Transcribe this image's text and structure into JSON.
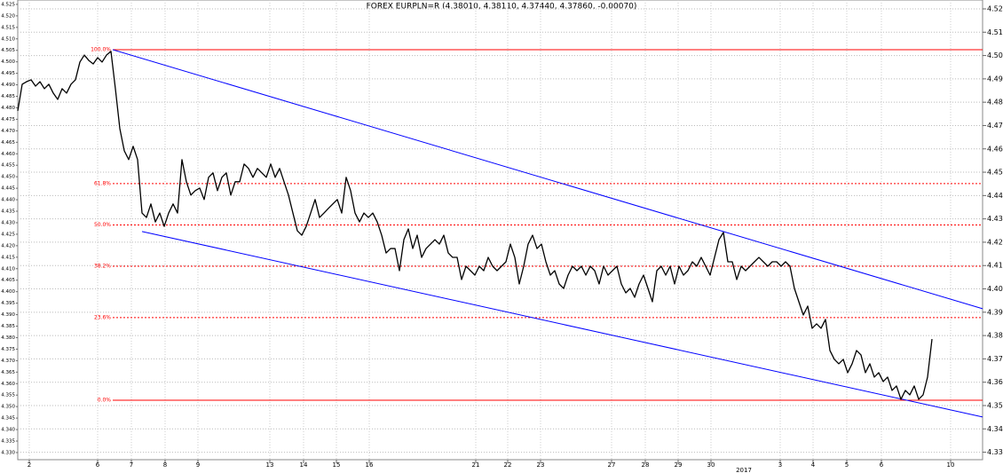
{
  "chart_data": {
    "type": "line",
    "title": "FOREX EURPLN=R (4.38010, 4.38110, 4.37440, 4.37860, -0.00070)",
    "series": [
      {
        "color": "#000000",
        "values": [
          4.4763,
          4.4877,
          4.4888,
          4.4896,
          4.4869,
          4.4888,
          4.4858,
          4.4877,
          4.4839,
          4.4812,
          4.4858,
          4.4839,
          4.4877,
          4.4896,
          4.4972,
          4.5002,
          4.4979,
          4.4964,
          4.4991,
          4.4972,
          4.5002,
          4.5018,
          4.4858,
          4.4687,
          4.4592,
          4.4554,
          4.4611,
          4.4554,
          4.4325,
          4.4306,
          4.4364,
          4.4287,
          4.4325,
          4.4268,
          4.4325,
          4.4364,
          4.4325,
          4.4554,
          4.4459,
          4.4402,
          4.4421,
          4.4432,
          4.4383,
          4.4478,
          4.4497,
          4.4421,
          4.4478,
          4.4497,
          4.4402,
          4.4459,
          4.4459,
          4.4535,
          4.4516,
          4.4478,
          4.4516,
          4.4497,
          4.4478,
          4.4535,
          4.4478,
          4.4516,
          4.4459,
          4.4402,
          4.4325,
          4.4249,
          4.423,
          4.4268,
          4.4325,
          4.4383,
          4.4306,
          4.4325,
          4.4345,
          4.4364,
          4.4383,
          4.4325,
          4.4478,
          4.4421,
          4.4325,
          4.4287,
          4.4325,
          4.4306,
          4.4325,
          4.4287,
          4.423,
          4.4154,
          4.4173,
          4.4173,
          4.4078,
          4.4211,
          4.4257,
          4.4173,
          4.423,
          4.4135,
          4.4173,
          4.4192,
          4.4211,
          4.4192,
          4.423,
          4.4154,
          4.4135,
          4.4135,
          4.404,
          4.4097,
          4.4078,
          4.4059,
          4.4097,
          4.4078,
          4.4135,
          4.4097,
          4.4078,
          4.4097,
          4.4116,
          4.4192,
          4.4135,
          4.4021,
          4.4097,
          4.4192,
          4.423,
          4.4173,
          4.4192,
          4.4116,
          4.4059,
          4.4078,
          4.4021,
          4.4002,
          4.4059,
          4.4097,
          4.4078,
          4.4097,
          4.4059,
          4.4097,
          4.4078,
          4.4021,
          4.4097,
          4.4059,
          4.4078,
          4.4097,
          4.4021,
          4.3983,
          4.4002,
          4.3964,
          4.4021,
          4.4059,
          4.4002,
          4.3945,
          4.4078,
          4.4097,
          4.4059,
          4.4097,
          4.4021,
          4.4097,
          4.4059,
          4.4078,
          4.4116,
          4.4097,
          4.4135,
          4.4097,
          4.4059,
          4.4135,
          4.4211,
          4.4242,
          4.4116,
          4.4116,
          4.404,
          4.4097,
          4.4078,
          4.4097,
          4.4116,
          4.4135,
          4.4116,
          4.4097,
          4.4116,
          4.4116,
          4.4097,
          4.4116,
          4.4097,
          4.4002,
          4.3945,
          4.3888,
          4.3926,
          4.3831,
          4.385,
          4.3831,
          4.3869,
          4.3736,
          4.3698,
          4.3679,
          4.3698,
          4.3641,
          4.3679,
          4.3736,
          4.3717,
          4.3641,
          4.3679,
          4.3622,
          4.3641,
          4.3603,
          4.3622,
          4.3565,
          4.3584,
          4.3527,
          4.3565,
          4.3546,
          4.3584,
          4.3527,
          4.3546,
          4.3622,
          4.3785
        ]
      }
    ],
    "xlim": [
      0,
      217.4
    ],
    "xticks": [
      {
        "value": 2.6,
        "label": "2"
      },
      {
        "value": 18,
        "label": "6"
      },
      {
        "value": 25.6,
        "label": "7"
      },
      {
        "value": 33.2,
        "label": "8"
      },
      {
        "value": 40.6,
        "label": "9"
      },
      {
        "value": 56.8,
        "label": "13"
      },
      {
        "value": 64.4,
        "label": "14"
      },
      {
        "value": 71.8,
        "label": "15"
      },
      {
        "value": 79.2,
        "label": "16"
      },
      {
        "value": 103.2,
        "label": "21"
      },
      {
        "value": 110.4,
        "label": "22"
      },
      {
        "value": 117.8,
        "label": "23"
      },
      {
        "value": 133.8,
        "label": "27"
      },
      {
        "value": 141.4,
        "label": "28"
      },
      {
        "value": 148.8,
        "label": "29"
      },
      {
        "value": 156.2,
        "label": "30"
      },
      {
        "value": 171.8,
        "label": "3"
      },
      {
        "value": 179.2,
        "label": "4"
      },
      {
        "value": 186.8,
        "label": "5"
      },
      {
        "value": 194.6,
        "label": "6"
      },
      {
        "value": 210.2,
        "label": "10"
      }
    ],
    "ylim": [
      4.3268,
      4.5238
    ],
    "yticks": [
      4.33,
      4.34,
      4.35,
      4.36,
      4.37,
      4.38,
      4.39,
      {
        "value": 4.4,
        "label": "4.40"
      },
      4.41,
      4.42,
      4.43,
      4.44,
      4.45,
      4.46,
      4.47,
      4.48,
      4.49,
      {
        "value": 4.5,
        "label": "4.50"
      },
      4.51,
      4.52
    ],
    "y2lim": [
      4.3269,
      4.5269
    ],
    "y2ticks": [
      {
        "value": 4.33,
        "label": "4.330"
      },
      4.335,
      {
        "value": 4.34,
        "label": "4.340"
      },
      4.345,
      {
        "value": 4.35,
        "label": "4.350"
      },
      4.355,
      {
        "value": 4.36,
        "label": "4.360"
      },
      4.365,
      {
        "value": 4.37,
        "label": "4.370"
      },
      4.375,
      {
        "value": 4.38,
        "label": "4.380"
      },
      4.385,
      {
        "value": 4.39,
        "label": "4.390"
      },
      4.395,
      {
        "value": 4.4,
        "label": "4.400"
      },
      4.405,
      {
        "value": 4.41,
        "label": "4.410"
      },
      4.415,
      {
        "value": 4.42,
        "label": "4.420"
      },
      4.425,
      {
        "value": 4.43,
        "label": "4.430"
      },
      4.435,
      {
        "value": 4.44,
        "label": "4.440"
      },
      4.445,
      {
        "value": 4.45,
        "label": "4.450"
      },
      4.455,
      {
        "value": 4.46,
        "label": "4.460"
      },
      4.465,
      {
        "value": 4.47,
        "label": "4.470"
      },
      4.475,
      {
        "value": 4.48,
        "label": "4.480"
      },
      4.485,
      {
        "value": 4.49,
        "label": "4.490"
      },
      4.495,
      {
        "value": 4.5,
        "label": "4.500"
      },
      4.505,
      {
        "value": 4.51,
        "label": "4.510"
      },
      4.515,
      {
        "value": 4.52,
        "label": "4.520"
      },
      4.525
    ],
    "grid": true,
    "fib_x": 21.4,
    "fib_color": "#ff0000",
    "fib_levels": [
      {
        "label": "100.0%",
        "value": 4.5025,
        "dashed": false
      },
      {
        "label": "61.8%",
        "value": 4.4451,
        "dashed": true
      },
      {
        "label": "50.0%",
        "value": 4.4274,
        "dashed": true
      },
      {
        "label": "38.2%",
        "value": 4.4097,
        "dashed": true
      },
      {
        "label": "23.6%",
        "value": 4.3877,
        "dashed": true
      },
      {
        "label": "0.0%",
        "value": 4.3523,
        "dashed": false
      }
    ],
    "trendlines": [
      {
        "color": "#0000ff",
        "x": [
          21.4,
          217.4
        ],
        "values": [
          4.5025,
          4.3915
        ]
      },
      {
        "color": "#0000ff",
        "x": [
          28,
          217.4
        ],
        "values": [
          4.4246,
          4.3451
        ]
      }
    ],
    "annotations": [
      {
        "text": "2017",
        "x": 163.6
      }
    ]
  }
}
